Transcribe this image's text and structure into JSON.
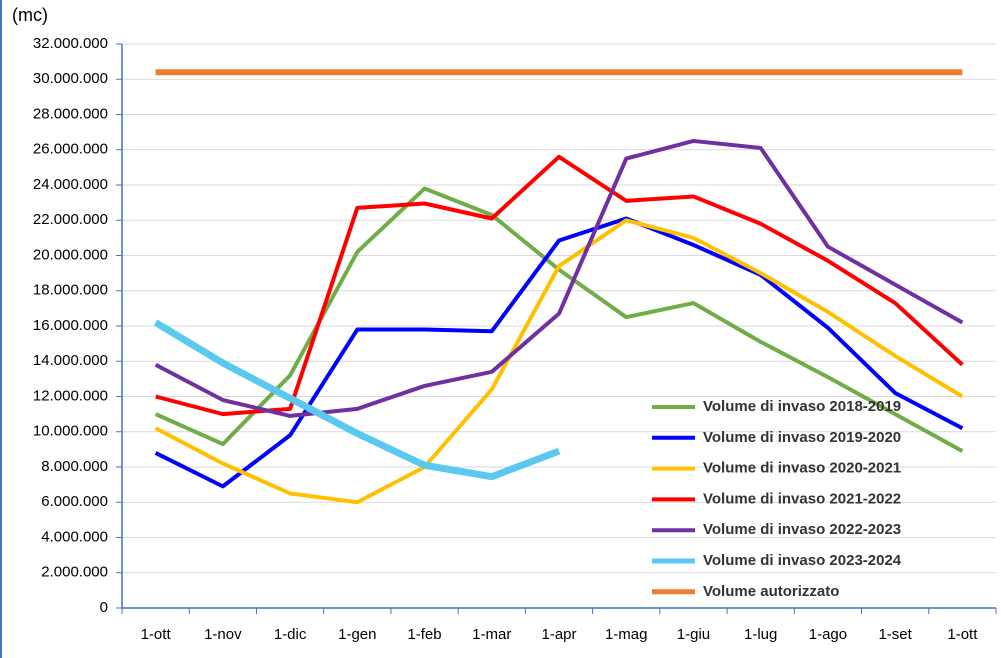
{
  "chart_data": {
    "type": "line",
    "title": "(mc)",
    "categories": [
      "1-ott",
      "1-nov",
      "1-dic",
      "1-gen",
      "1-feb",
      "1-mar",
      "1-apr",
      "1-mag",
      "1-giu",
      "1-lug",
      "1-ago",
      "1-set",
      "1-ott"
    ],
    "series": [
      {
        "name": "Volume di invaso 2018-2019",
        "color": "#70ad47",
        "width": 4,
        "values": [
          11000000,
          9300000,
          13200000,
          20200000,
          23800000,
          22300000,
          19200000,
          16500000,
          17300000,
          15100000,
          13100000,
          11000000,
          8900000
        ]
      },
      {
        "name": "Volume di invaso 2019-2020",
        "color": "#0000ff",
        "width": 4,
        "values": [
          8800000,
          6900000,
          9800000,
          15800000,
          15800000,
          15700000,
          20850000,
          22100000,
          20600000,
          18900000,
          15900000,
          12200000,
          10200000
        ]
      },
      {
        "name": "Volume di invaso 2020-2021",
        "color": "#ffc000",
        "width": 4,
        "values": [
          10200000,
          8200000,
          6500000,
          6000000,
          8000000,
          12400000,
          19400000,
          22000000,
          21000000,
          19000000,
          16800000,
          14300000,
          12000000
        ]
      },
      {
        "name": "Volume di invaso 2021-2022",
        "color": "#ff0000",
        "width": 4,
        "values": [
          12000000,
          11000000,
          11300000,
          22700000,
          22950000,
          22100000,
          25600000,
          23100000,
          23350000,
          21800000,
          19700000,
          17300000,
          13800000
        ]
      },
      {
        "name": "Volume di invaso 2022-2023",
        "color": "#7030a0",
        "width": 4,
        "values": [
          13800000,
          11800000,
          10900000,
          11300000,
          12600000,
          13400000,
          16700000,
          25500000,
          26500000,
          26100000,
          20500000,
          18350000,
          16200000
        ]
      },
      {
        "name": "Volume di invaso 2023-2024",
        "color": "#5bc8f0",
        "width": 7,
        "values": [
          16200000,
          13900000,
          11900000,
          9900000,
          8100000,
          7450000,
          8900000,
          null,
          null,
          null,
          null,
          null,
          null
        ]
      },
      {
        "name": "Volume autorizzato",
        "color": "#ed7d31",
        "width": 6,
        "values": [
          30400000,
          30400000,
          30400000,
          30400000,
          30400000,
          30400000,
          30400000,
          30400000,
          30400000,
          30400000,
          30400000,
          30400000,
          30400000
        ]
      }
    ],
    "ylim": [
      0,
      32000000
    ],
    "yticks": [
      0,
      {
        "value": 2000000,
        "label": "2.000.000"
      },
      {
        "value": 4000000,
        "label": "4.000.000"
      },
      {
        "value": 6000000,
        "label": "6.000.000"
      },
      {
        "value": 8000000,
        "label": "8.000.000"
      },
      {
        "value": 10000000,
        "label": "10.000.000"
      },
      {
        "value": 12000000,
        "label": "12.000.000"
      },
      {
        "value": 14000000,
        "label": "14.000.000"
      },
      {
        "value": 16000000,
        "label": "16.000.000"
      },
      {
        "value": 18000000,
        "label": "18.000.000"
      },
      {
        "value": 20000000,
        "label": "20.000.000"
      },
      {
        "value": 22000000,
        "label": "22.000.000"
      },
      {
        "value": 24000000,
        "label": "24.000.000"
      },
      {
        "value": 26000000,
        "label": "26.000.000"
      },
      {
        "value": 28000000,
        "label": "28.000.000"
      },
      {
        "value": 30000000,
        "label": "30.000.000"
      },
      {
        "value": 32000000,
        "label": "32.000.000"
      }
    ],
    "grid": true
  }
}
